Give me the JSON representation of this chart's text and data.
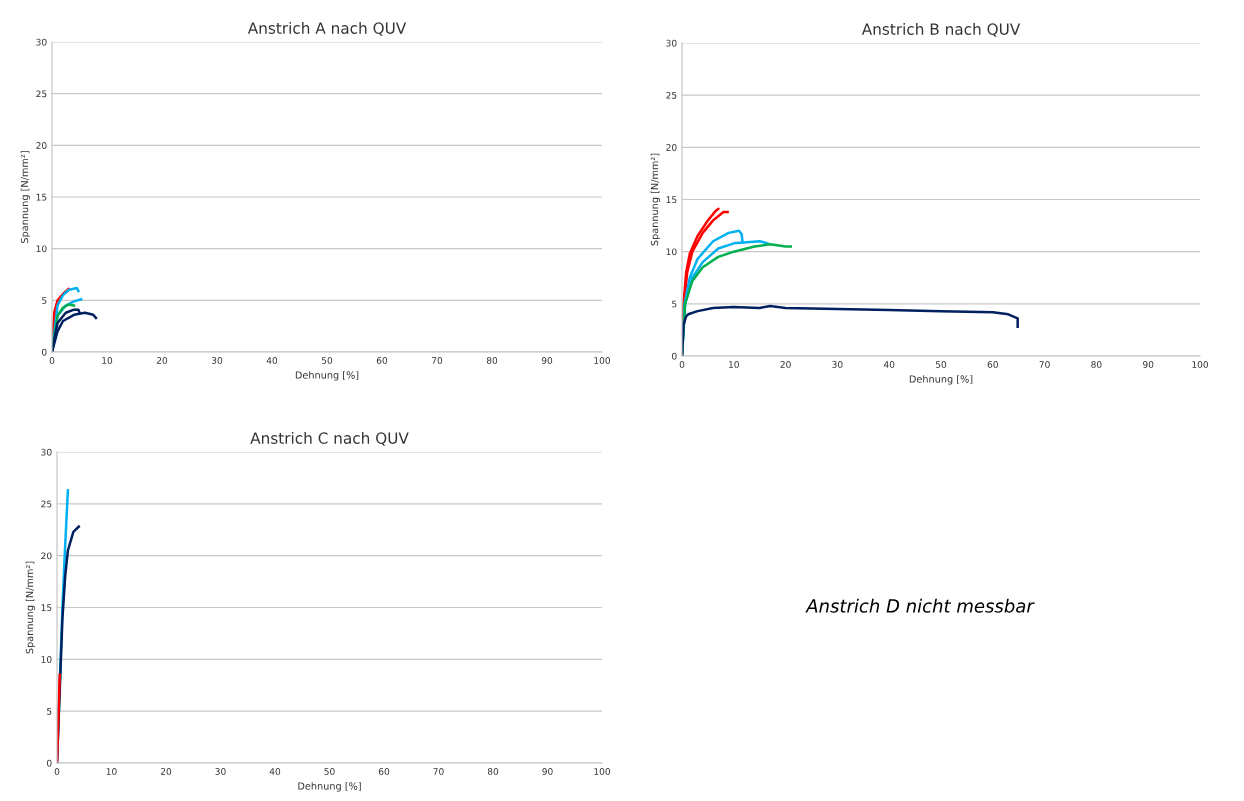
{
  "chart_data": [
    {
      "type": "line",
      "title": "Anstrich A nach QUV",
      "xlabel": "Dehnung [%]",
      "ylabel": "Spannung [N/mm²]",
      "xlim": [
        0,
        100
      ],
      "ylim": [
        0,
        30
      ],
      "xticks": [
        0,
        10,
        20,
        30,
        40,
        50,
        60,
        70,
        80,
        90,
        100
      ],
      "yticks": [
        0,
        5,
        10,
        15,
        20,
        25,
        30
      ],
      "grid": "y",
      "legend": false,
      "marker": "none",
      "line_style": "solid",
      "series": [
        {
          "color": "#ff0000",
          "x": [
            0,
            0.5,
            1,
            2,
            3
          ],
          "values": [
            0,
            3.5,
            4.8,
            5.6,
            6.1
          ]
        },
        {
          "color": "#ff0000",
          "x": [
            0,
            0.4,
            1,
            2,
            2.8
          ],
          "values": [
            0,
            3.8,
            5.0,
            5.6,
            5.9
          ]
        },
        {
          "color": "#00b0f0",
          "x": [
            0,
            1,
            2,
            3,
            4.5,
            4.8
          ],
          "values": [
            0,
            4.5,
            5.5,
            6.0,
            6.2,
            5.9
          ]
        },
        {
          "color": "#00b0f0",
          "x": [
            0,
            1,
            2.5,
            4,
            5.3
          ],
          "values": [
            0,
            3.5,
            4.5,
            4.9,
            5.1
          ]
        },
        {
          "color": "#00b050",
          "x": [
            0,
            1,
            2,
            3,
            4
          ],
          "values": [
            0,
            3.5,
            4.3,
            4.6,
            4.5
          ]
        },
        {
          "color": "#002060",
          "x": [
            0,
            1,
            2.5,
            4,
            4.8,
            5
          ],
          "values": [
            0,
            2.8,
            3.8,
            4.1,
            4.1,
            3.8
          ]
        },
        {
          "color": "#002060",
          "x": [
            0,
            1,
            2,
            4,
            6,
            7.5,
            8
          ],
          "values": [
            0,
            2,
            3,
            3.6,
            3.8,
            3.6,
            3.3
          ]
        }
      ]
    },
    {
      "type": "line",
      "title": "Anstrich B nach QUV",
      "xlabel": "Dehnung [%]",
      "ylabel": "Spannung [N/mm²]",
      "xlim": [
        0,
        100
      ],
      "ylim": [
        0,
        30
      ],
      "xticks": [
        0,
        10,
        20,
        30,
        40,
        50,
        60,
        70,
        80,
        90,
        100
      ],
      "yticks": [
        0,
        5,
        10,
        15,
        20,
        25,
        30
      ],
      "grid": "y",
      "legend": false,
      "marker": "none",
      "line_style": "solid",
      "series": [
        {
          "color": "#ff0000",
          "x": [
            0,
            0.3,
            0.8,
            1.5,
            3,
            5,
            6.5,
            7
          ],
          "values": [
            0,
            5,
            8,
            9.8,
            11.5,
            13,
            13.9,
            14.1
          ]
        },
        {
          "color": "#ff0000",
          "x": [
            0,
            0.4,
            1,
            2,
            4,
            6,
            8,
            8.8
          ],
          "values": [
            0,
            5,
            8,
            10,
            11.8,
            13,
            13.8,
            13.8
          ]
        },
        {
          "color": "#00b0f0",
          "x": [
            0,
            0.5,
            1.5,
            3,
            6,
            9,
            11,
            11.5,
            11.7
          ],
          "values": [
            0,
            5,
            7.5,
            9.3,
            11,
            11.8,
            12,
            11.7,
            10.9
          ]
        },
        {
          "color": "#00b0f0",
          "x": [
            0,
            0.6,
            2,
            4,
            7,
            10,
            15,
            16.5
          ],
          "values": [
            0,
            5,
            7.5,
            9,
            10.3,
            10.8,
            11,
            10.8
          ]
        },
        {
          "color": "#00b050",
          "x": [
            0,
            0.6,
            2,
            4,
            7,
            10,
            14,
            17,
            20,
            21
          ],
          "values": [
            0,
            5,
            7.2,
            8.5,
            9.5,
            10,
            10.5,
            10.7,
            10.5,
            10.5
          ]
        },
        {
          "color": "#002060",
          "x": [
            0,
            0.3,
            0.8,
            1.2,
            3,
            6,
            10,
            15,
            17,
            20,
            30,
            40,
            50,
            60,
            63,
            64.8,
            64.8
          ],
          "values": [
            0,
            3,
            3.8,
            4.0,
            4.3,
            4.6,
            4.7,
            4.6,
            4.8,
            4.6,
            4.5,
            4.4,
            4.3,
            4.2,
            4.0,
            3.6,
            2.8
          ]
        }
      ]
    },
    {
      "type": "line",
      "title": "Anstrich C nach QUV",
      "xlabel": "Dehnung [%]",
      "ylabel": "Spannung [N/mm²]",
      "xlim": [
        0,
        100
      ],
      "ylim": [
        0,
        30
      ],
      "xticks": [
        0,
        10,
        20,
        30,
        40,
        50,
        60,
        70,
        80,
        90,
        100
      ],
      "yticks": [
        0,
        5,
        10,
        15,
        20,
        25,
        30
      ],
      "grid": "y",
      "legend": false,
      "marker": "none",
      "line_style": "solid",
      "series": [
        {
          "color": "#00b0f0",
          "x": [
            0,
            1,
            1.5,
            2
          ],
          "values": [
            0,
            15,
            21,
            26.3
          ]
        },
        {
          "color": "#002060",
          "x": [
            0,
            1,
            1.5,
            2,
            3,
            4
          ],
          "values": [
            0,
            14,
            18,
            20.5,
            22.3,
            22.8
          ]
        },
        {
          "color": "#ff0000",
          "x": [
            0,
            0.5
          ],
          "values": [
            0,
            8.5
          ]
        }
      ]
    },
    {
      "type": "other",
      "annotations": [
        "Anstrich D nicht messbar"
      ]
    }
  ]
}
